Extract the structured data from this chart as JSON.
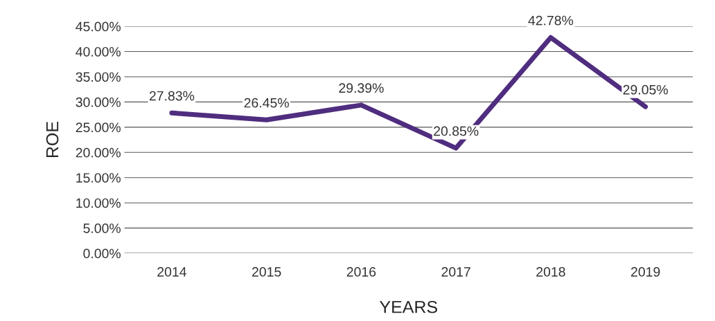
{
  "chart_data": {
    "type": "line",
    "xlabel": "YEARS",
    "ylabel": "ROE",
    "categories": [
      "2014",
      "2015",
      "2016",
      "2017",
      "2018",
      "2019"
    ],
    "series": [
      {
        "color": "#4f2d7f",
        "values": [
          27.83,
          26.45,
          29.39,
          20.85,
          42.78,
          29.05
        ],
        "value_labels": [
          "27.83%",
          "26.45%",
          "29.39%",
          "20.85%",
          "42.78%",
          "29.05%"
        ]
      }
    ],
    "ylim": [
      0,
      45
    ],
    "yticks": [
      {
        "value": 0,
        "label": "0.00%"
      },
      {
        "value": 5,
        "label": "5.00%"
      },
      {
        "value": 10,
        "label": "10.00%"
      },
      {
        "value": 15,
        "label": "15.00%"
      },
      {
        "value": 20,
        "label": "20.00%"
      },
      {
        "value": 25,
        "label": "25.00%"
      },
      {
        "value": 30,
        "label": "30.00%"
      },
      {
        "value": 35,
        "label": "35.00%"
      },
      {
        "value": 40,
        "label": "40.00%"
      },
      {
        "value": 45,
        "label": "45.00%"
      }
    ],
    "grid": "y",
    "legend": false,
    "marker": "none",
    "line_style": "solid"
  }
}
